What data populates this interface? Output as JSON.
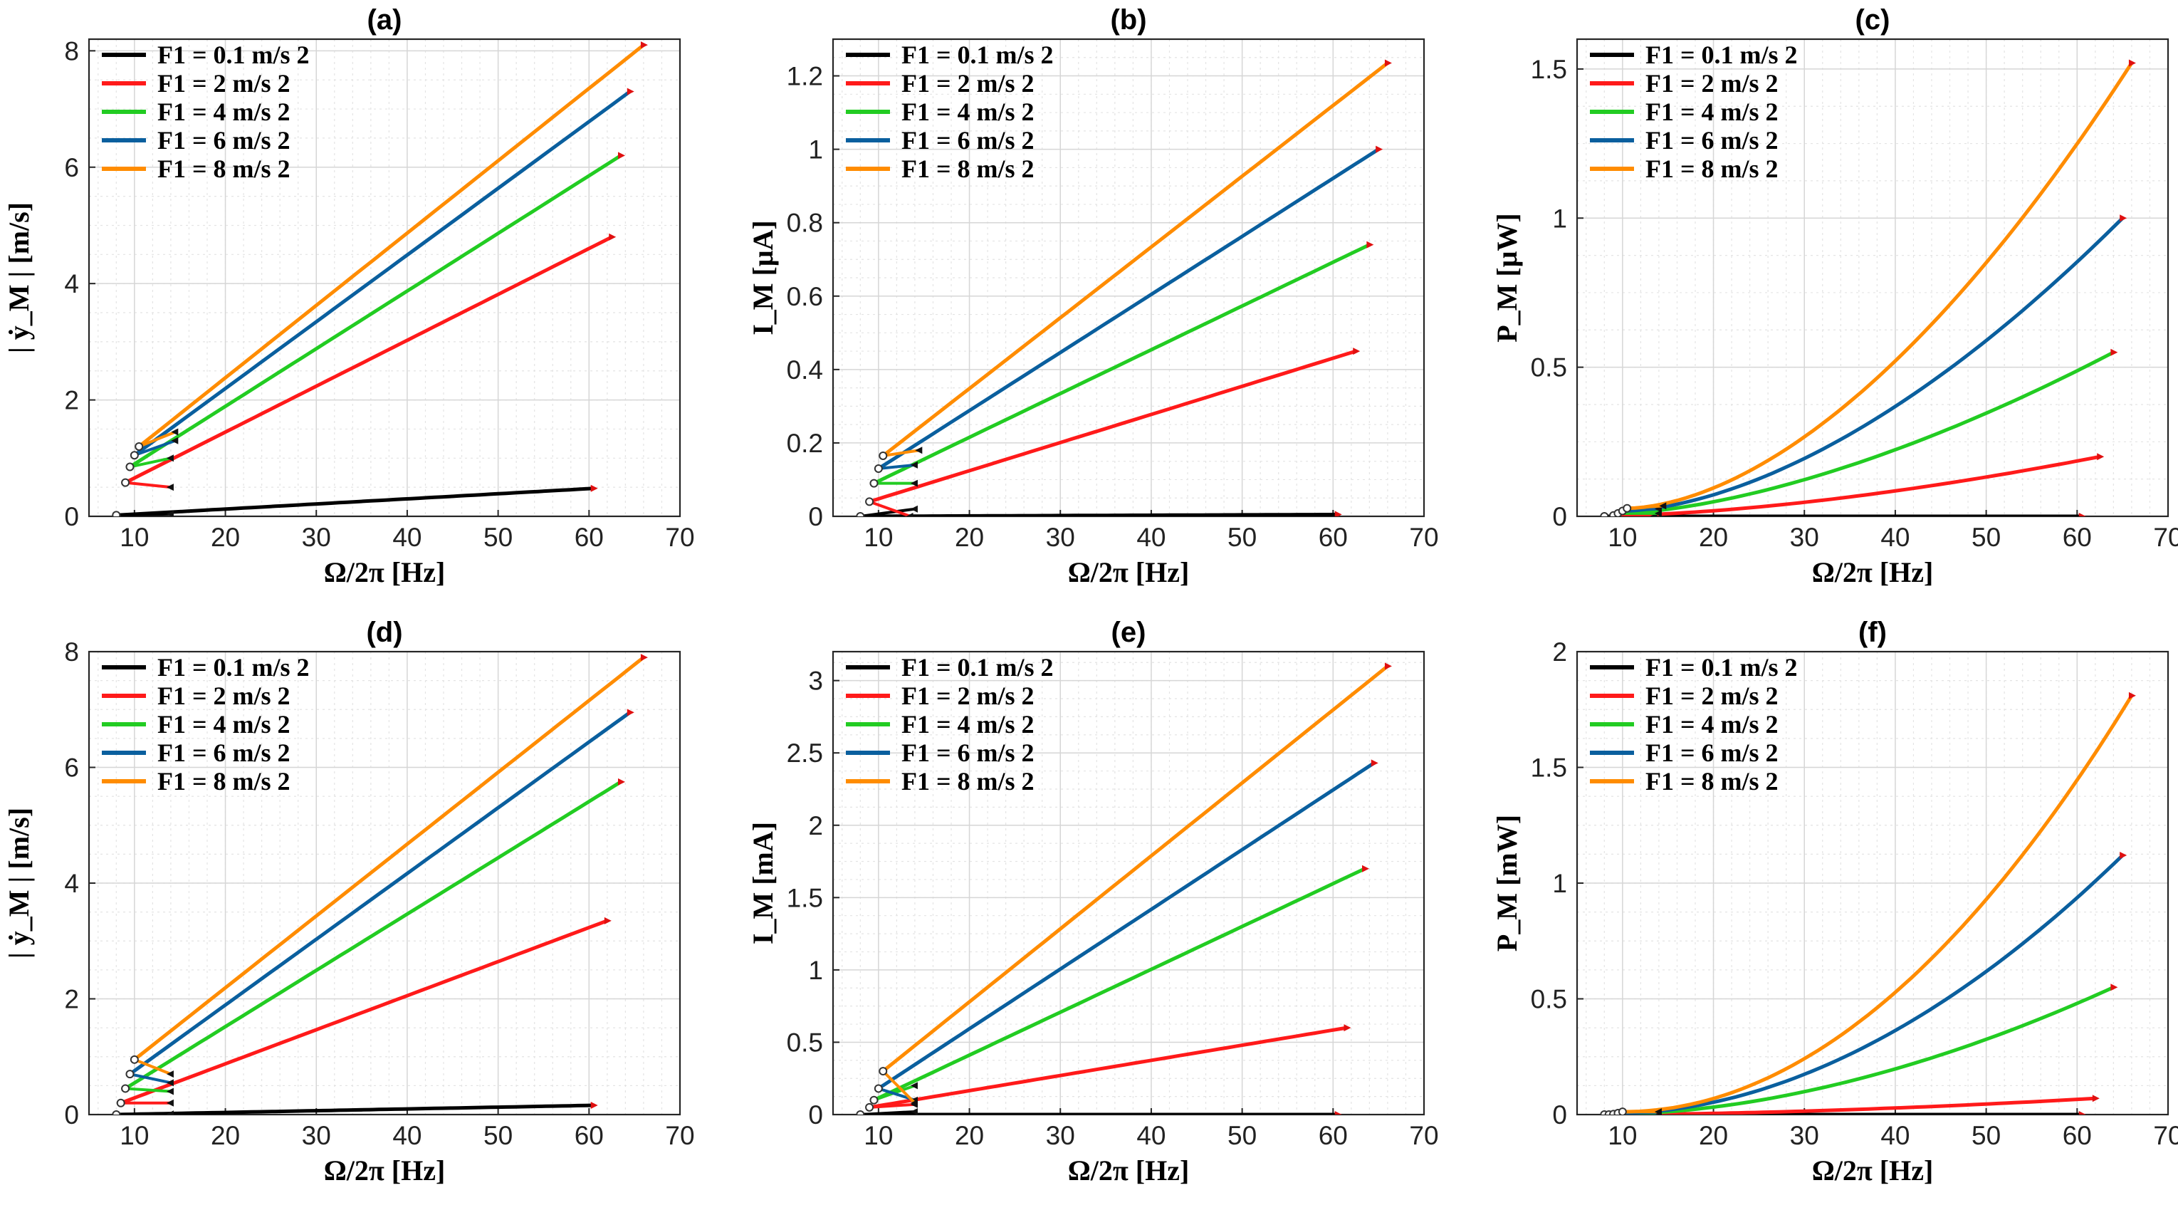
{
  "figure": {
    "legend_entries": [
      "F1 = 0.1 m/s 2",
      "F1 = 2 m/s 2",
      "F1 = 4 m/s 2",
      "F1 = 6 m/s 2",
      "F1 = 8 m/s 2"
    ],
    "series_colors": [
      "#000000",
      "#ff1a1a",
      "#22cc22",
      "#0a5f9e",
      "#ff8c00"
    ]
  },
  "chart_data": [
    {
      "id": "a",
      "type": "line",
      "title": "(a)",
      "xlabel": "Ω/2π [Hz]",
      "ylabel": "| ẏ_M | [m/s]",
      "xlim": [
        5,
        70
      ],
      "ylim": [
        0,
        8.2
      ],
      "xticks": [
        10,
        20,
        30,
        40,
        50,
        60,
        70
      ],
      "yticks": [
        0,
        2,
        4,
        6,
        8
      ],
      "series": [
        {
          "name": "F1 = 0.1 m/s 2",
          "branch_x": [
            8.0,
            14.0
          ],
          "branch_y": [
            0.02,
            0.04
          ],
          "curve_x": [
            8.0,
            60.5
          ],
          "curve_y": [
            0.02,
            0.48
          ],
          "exp": 1.0
        },
        {
          "name": "F1 = 2 m/s 2",
          "branch_x": [
            9.0,
            14.0
          ],
          "branch_y": [
            0.58,
            0.5
          ],
          "curve_x": [
            9.0,
            62.5
          ],
          "curve_y": [
            0.58,
            4.8
          ],
          "exp": 1.0
        },
        {
          "name": "F1 = 4 m/s 2",
          "branch_x": [
            9.5,
            14.0
          ],
          "branch_y": [
            0.85,
            1.0
          ],
          "curve_x": [
            9.5,
            63.5
          ],
          "curve_y": [
            0.85,
            6.2
          ],
          "exp": 1.0
        },
        {
          "name": "F1 = 6 m/s 2",
          "branch_x": [
            10.0,
            14.5
          ],
          "branch_y": [
            1.05,
            1.3
          ],
          "curve_x": [
            10.0,
            64.5
          ],
          "curve_y": [
            1.05,
            7.3
          ],
          "exp": 1.0
        },
        {
          "name": "F1 = 8 m/s 2",
          "branch_x": [
            10.5,
            14.5
          ],
          "branch_y": [
            1.2,
            1.45
          ],
          "curve_x": [
            10.5,
            66.0
          ],
          "curve_y": [
            1.2,
            8.1
          ],
          "exp": 1.0
        }
      ]
    },
    {
      "id": "b",
      "type": "line",
      "title": "(b)",
      "xlabel": "Ω/2π [Hz]",
      "ylabel": "I_M [μA]",
      "xlim": [
        5,
        70
      ],
      "ylim": [
        0,
        1.3
      ],
      "xticks": [
        10,
        20,
        30,
        40,
        50,
        60,
        70
      ],
      "yticks": [
        0,
        0.2,
        0.4,
        0.6,
        0.8,
        1,
        1.2
      ],
      "series": [
        {
          "name": "F1 = 0.1 m/s 2",
          "branch_x": [
            8.0,
            14.0
          ],
          "branch_y": [
            0.0,
            0.02
          ],
          "curve_x": [
            8.0,
            60.5
          ],
          "curve_y": [
            0.0,
            0.005
          ],
          "exp": 1.0
        },
        {
          "name": "F1 = 2 m/s 2",
          "branch_x": [
            9.0,
            13.5
          ],
          "branch_y": [
            0.04,
            0.0
          ],
          "curve_x": [
            9.0,
            62.5
          ],
          "curve_y": [
            0.04,
            0.45
          ],
          "exp": 1.0
        },
        {
          "name": "F1 = 4 m/s 2",
          "branch_x": [
            9.5,
            14.0
          ],
          "branch_y": [
            0.09,
            0.09
          ],
          "curve_x": [
            9.5,
            64.0
          ],
          "curve_y": [
            0.09,
            0.74
          ],
          "exp": 1.0
        },
        {
          "name": "F1 = 6 m/s 2",
          "branch_x": [
            10.0,
            14.0
          ],
          "branch_y": [
            0.13,
            0.14
          ],
          "curve_x": [
            10.0,
            65.0
          ],
          "curve_y": [
            0.13,
            1.0
          ],
          "exp": 1.0
        },
        {
          "name": "F1 = 8 m/s 2",
          "branch_x": [
            10.5,
            14.5
          ],
          "branch_y": [
            0.165,
            0.18
          ],
          "curve_x": [
            10.5,
            66.0
          ],
          "curve_y": [
            0.165,
            1.235
          ],
          "exp": 1.0
        }
      ]
    },
    {
      "id": "c",
      "type": "line",
      "title": "(c)",
      "xlabel": "Ω/2π [Hz]",
      "ylabel": "P_M [μW]",
      "xlim": [
        5,
        70
      ],
      "ylim": [
        0,
        1.6
      ],
      "xticks": [
        10,
        20,
        30,
        40,
        50,
        60,
        70
      ],
      "yticks": [
        0,
        0.5,
        1,
        1.5
      ],
      "series": [
        {
          "name": "F1 = 0.1 m/s 2",
          "branch_x": [
            8.0,
            14.0
          ],
          "branch_y": [
            0.0,
            0.01
          ],
          "curve_x": [
            8.0,
            60.5
          ],
          "curve_y": [
            0.0,
            0.0
          ],
          "exp": 1.0
        },
        {
          "name": "F1 = 2 m/s 2",
          "branch_x": [
            9.0,
            13.5
          ],
          "branch_y": [
            0.003,
            0.0
          ],
          "curve_x": [
            9.0,
            62.5
          ],
          "curve_y": [
            0.003,
            0.2
          ],
          "exp": 1.6
        },
        {
          "name": "F1 = 4 m/s 2",
          "branch_x": [
            9.5,
            14.0
          ],
          "branch_y": [
            0.01,
            0.01
          ],
          "curve_x": [
            9.5,
            64.0
          ],
          "curve_y": [
            0.01,
            0.55
          ],
          "exp": 1.6
        },
        {
          "name": "F1 = 6 m/s 2",
          "branch_x": [
            10.0,
            14.0
          ],
          "branch_y": [
            0.018,
            0.025
          ],
          "curve_x": [
            10.0,
            65.0
          ],
          "curve_y": [
            0.018,
            1.0
          ],
          "exp": 1.7
        },
        {
          "name": "F1 = 8 m/s 2",
          "branch_x": [
            10.5,
            14.5
          ],
          "branch_y": [
            0.027,
            0.035
          ],
          "curve_x": [
            10.5,
            66.0
          ],
          "curve_y": [
            0.027,
            1.52
          ],
          "exp": 1.75
        }
      ]
    },
    {
      "id": "d",
      "type": "line",
      "title": "(d)",
      "xlabel": "Ω/2π [Hz]",
      "ylabel": "| ẏ_M | [m/s]",
      "xlim": [
        5,
        70
      ],
      "ylim": [
        0,
        8
      ],
      "xticks": [
        10,
        20,
        30,
        40,
        50,
        60,
        70
      ],
      "yticks": [
        0,
        2,
        4,
        6,
        8
      ],
      "series": [
        {
          "name": "F1 = 0.1 m/s 2",
          "branch_x": [
            8.0,
            14.0
          ],
          "branch_y": [
            0.0,
            0.01
          ],
          "curve_x": [
            8.0,
            60.5
          ],
          "curve_y": [
            0.0,
            0.16
          ],
          "exp": 1.0
        },
        {
          "name": "F1 = 2 m/s 2",
          "branch_x": [
            8.5,
            14.0
          ],
          "branch_y": [
            0.2,
            0.2
          ],
          "curve_x": [
            8.5,
            62.0
          ],
          "curve_y": [
            0.2,
            3.35
          ],
          "exp": 1.0
        },
        {
          "name": "F1 = 4 m/s 2",
          "branch_x": [
            9.0,
            14.0
          ],
          "branch_y": [
            0.45,
            0.4
          ],
          "curve_x": [
            9.0,
            63.5
          ],
          "curve_y": [
            0.45,
            5.75
          ],
          "exp": 1.0
        },
        {
          "name": "F1 = 6 m/s 2",
          "branch_x": [
            9.5,
            14.0
          ],
          "branch_y": [
            0.7,
            0.55
          ],
          "curve_x": [
            9.5,
            64.5
          ],
          "curve_y": [
            0.7,
            6.95
          ],
          "exp": 1.0
        },
        {
          "name": "F1 = 8 m/s 2",
          "branch_x": [
            10.0,
            14.0
          ],
          "branch_y": [
            0.95,
            0.7
          ],
          "curve_x": [
            10.0,
            66.0
          ],
          "curve_y": [
            0.95,
            7.9
          ],
          "exp": 1.0
        }
      ]
    },
    {
      "id": "e",
      "type": "line",
      "title": "(e)",
      "xlabel": "Ω/2π [Hz]",
      "ylabel": "I_M [mA]",
      "xlim": [
        5,
        70
      ],
      "ylim": [
        0,
        3.2
      ],
      "xticks": [
        10,
        20,
        30,
        40,
        50,
        60,
        70
      ],
      "yticks": [
        0,
        0.5,
        1,
        1.5,
        2,
        2.5,
        3
      ],
      "series": [
        {
          "name": "F1 = 0.1 m/s 2",
          "branch_x": [
            8.0,
            14.0
          ],
          "branch_y": [
            0.0,
            0.02
          ],
          "curve_x": [
            8.0,
            60.5
          ],
          "curve_y": [
            0.0,
            0.0
          ],
          "exp": 1.0
        },
        {
          "name": "F1 = 2 m/s 2",
          "branch_x": [
            9.0,
            14.0
          ],
          "branch_y": [
            0.05,
            0.07
          ],
          "curve_x": [
            9.0,
            61.5
          ],
          "curve_y": [
            0.05,
            0.6
          ],
          "exp": 1.0
        },
        {
          "name": "F1 = 4 m/s 2",
          "branch_x": [
            9.5,
            14.0
          ],
          "branch_y": [
            0.1,
            0.2
          ],
          "curve_x": [
            9.5,
            63.5
          ],
          "curve_y": [
            0.1,
            1.7
          ],
          "exp": 1.0
        },
        {
          "name": "F1 = 6 m/s 2",
          "branch_x": [
            10.0,
            14.0
          ],
          "branch_y": [
            0.18,
            0.1
          ],
          "curve_x": [
            10.0,
            64.5
          ],
          "curve_y": [
            0.18,
            2.43
          ],
          "exp": 1.0
        },
        {
          "name": "F1 = 8 m/s 2",
          "branch_x": [
            10.5,
            14.0
          ],
          "branch_y": [
            0.3,
            0.08
          ],
          "curve_x": [
            10.5,
            66.0
          ],
          "curve_y": [
            0.3,
            3.1
          ],
          "exp": 1.0
        }
      ]
    },
    {
      "id": "f",
      "type": "line",
      "title": "(f)",
      "xlabel": "Ω/2π [Hz]",
      "ylabel": "P_M [mW]",
      "xlim": [
        5,
        70
      ],
      "ylim": [
        0,
        2
      ],
      "xticks": [
        10,
        20,
        30,
        40,
        50,
        60,
        70
      ],
      "yticks": [
        0,
        0.5,
        1,
        1.5,
        2
      ],
      "series": [
        {
          "name": "F1 = 0.1 m/s 2",
          "branch_x": [
            8.0,
            14.0
          ],
          "branch_y": [
            0.0,
            0.0
          ],
          "curve_x": [
            8.0,
            60.5
          ],
          "curve_y": [
            0.0,
            0.0
          ],
          "exp": 1.0
        },
        {
          "name": "F1 = 2 m/s 2",
          "branch_x": [
            8.5,
            14.0
          ],
          "branch_y": [
            0.0,
            0.0
          ],
          "curve_x": [
            8.5,
            62.0
          ],
          "curve_y": [
            0.0,
            0.07
          ],
          "exp": 1.7
        },
        {
          "name": "F1 = 4 m/s 2",
          "branch_x": [
            9.0,
            14.0
          ],
          "branch_y": [
            0.002,
            0.004
          ],
          "curve_x": [
            9.0,
            64.0
          ],
          "curve_y": [
            0.002,
            0.55
          ],
          "exp": 1.8
        },
        {
          "name": "F1 = 6 m/s 2",
          "branch_x": [
            9.5,
            14.0
          ],
          "branch_y": [
            0.006,
            0.008
          ],
          "curve_x": [
            9.5,
            65.0
          ],
          "curve_y": [
            0.006,
            1.12
          ],
          "exp": 1.9
        },
        {
          "name": "F1 = 8 m/s 2",
          "branch_x": [
            10.0,
            14.0
          ],
          "branch_y": [
            0.012,
            0.012
          ],
          "curve_x": [
            10.0,
            66.0
          ],
          "curve_y": [
            0.012,
            1.81
          ],
          "exp": 2.0
        }
      ]
    }
  ]
}
